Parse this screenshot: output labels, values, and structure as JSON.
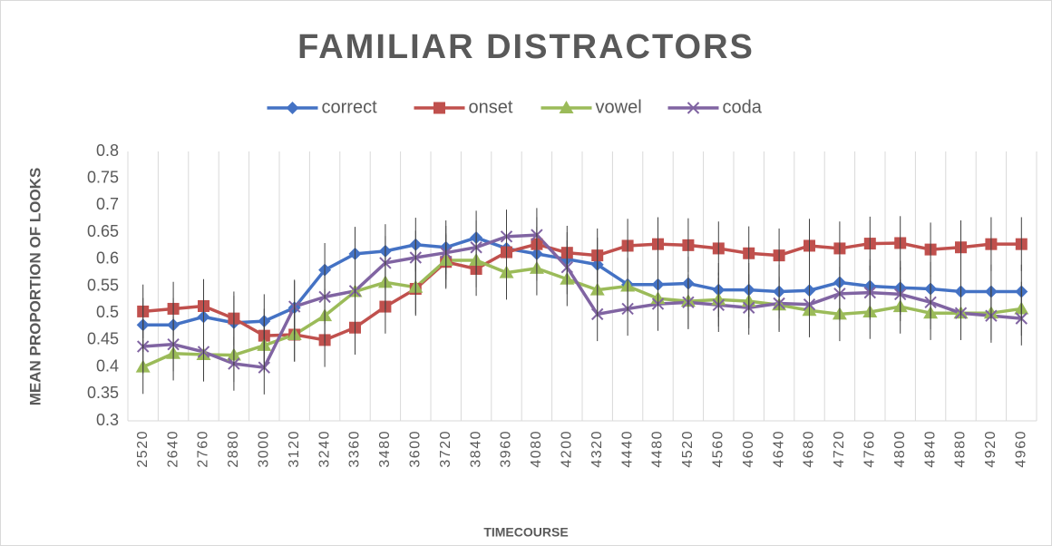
{
  "chart_data": {
    "type": "line",
    "title": "FAMILIAR DISTRACTORS",
    "y_label": "MEAN PROPORTION OF LOOKS",
    "x_label": "TIMECOURSE",
    "categories": [
      "2520",
      "2640",
      "2760",
      "2880",
      "3000",
      "3120",
      "3240",
      "3360",
      "3480",
      "3600",
      "3720",
      "3840",
      "3960",
      "4080",
      "4200",
      "4320",
      "4440",
      "4480",
      "4520",
      "4560",
      "4600",
      "4640",
      "4680",
      "4720",
      "4760",
      "4800",
      "4840",
      "4880",
      "4920",
      "4960"
    ],
    "series": [
      {
        "name": "correct",
        "color": "#4472c4",
        "marker": "diamond",
        "error": 0.05,
        "values": [
          0.478,
          0.478,
          0.493,
          0.482,
          0.485,
          0.51,
          0.58,
          0.61,
          0.615,
          0.627,
          0.622,
          0.64,
          0.62,
          0.61,
          0.6,
          0.59,
          0.553,
          0.553,
          0.555,
          0.543,
          0.543,
          0.54,
          0.542,
          0.557,
          0.55,
          0.547,
          0.545,
          0.54,
          0.54,
          0.54
        ]
      },
      {
        "name": "onset",
        "color": "#c0504d",
        "marker": "square",
        "error": 0.05,
        "values": [
          0.503,
          0.508,
          0.513,
          0.49,
          0.458,
          0.46,
          0.45,
          0.473,
          0.512,
          0.545,
          0.595,
          0.582,
          0.613,
          0.628,
          0.612,
          0.607,
          0.625,
          0.628,
          0.626,
          0.62,
          0.611,
          0.607,
          0.625,
          0.62,
          0.629,
          0.63,
          0.618,
          0.622,
          0.628,
          0.628
        ]
      },
      {
        "name": "vowel",
        "color": "#9bbb59",
        "marker": "triangle",
        "error": 0.05,
        "values": [
          0.4,
          0.425,
          0.423,
          0.422,
          0.44,
          0.46,
          0.495,
          0.54,
          0.557,
          0.548,
          0.598,
          0.598,
          0.575,
          0.583,
          0.563,
          0.543,
          0.55,
          0.527,
          0.522,
          0.525,
          0.522,
          0.515,
          0.505,
          0.498,
          0.502,
          0.512,
          0.5,
          0.5,
          0.5,
          0.508
        ]
      },
      {
        "name": "coda",
        "color": "#8064a2",
        "marker": "x",
        "error": 0.05,
        "values": [
          0.438,
          0.442,
          0.428,
          0.406,
          0.399,
          0.512,
          0.53,
          0.541,
          0.593,
          0.603,
          0.612,
          0.622,
          0.642,
          0.645,
          0.585,
          0.498,
          0.508,
          0.517,
          0.52,
          0.515,
          0.51,
          0.518,
          0.516,
          0.536,
          0.538,
          0.535,
          0.52,
          0.5,
          0.495,
          0.49
        ]
      }
    ],
    "ylim": [
      0.3,
      0.8
    ],
    "yticks": [
      0.3,
      0.35,
      0.4,
      0.45,
      0.5,
      0.55,
      0.6,
      0.65,
      0.7,
      0.75,
      0.8
    ],
    "grid": "x",
    "legend": "top"
  }
}
